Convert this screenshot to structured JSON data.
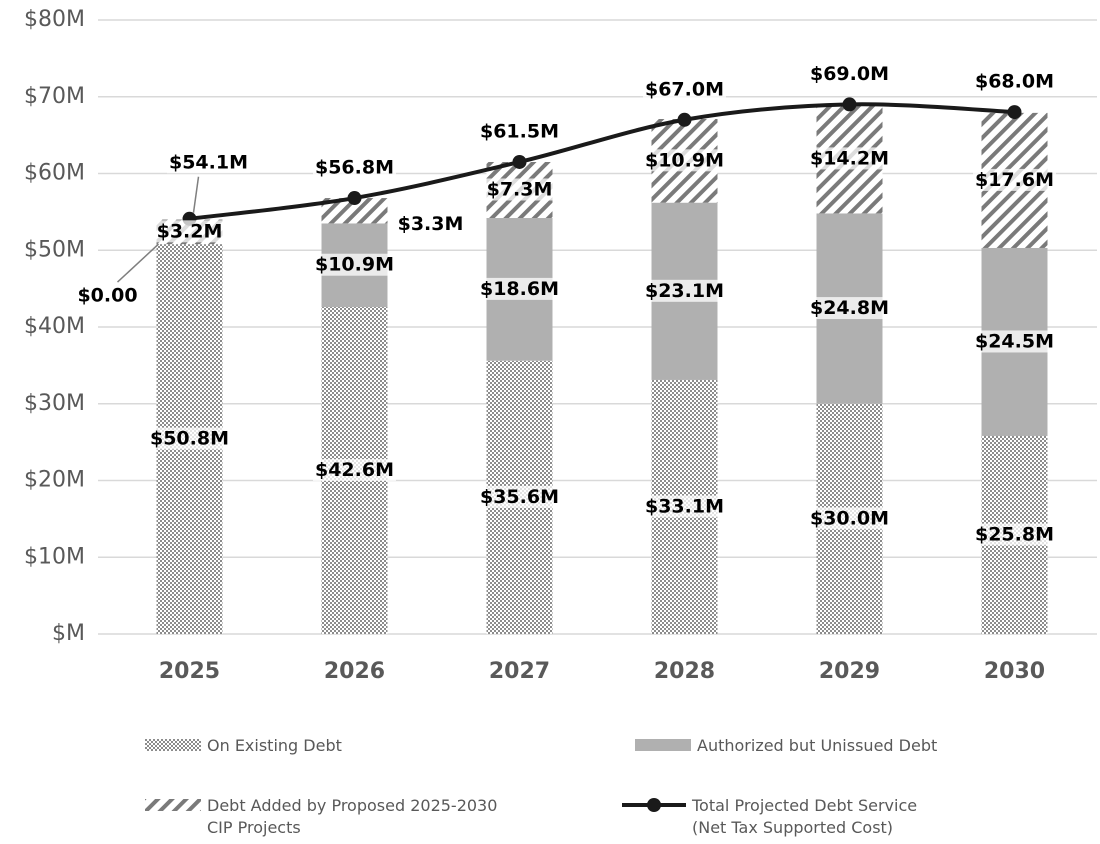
{
  "chart_data": {
    "type": "stacked_bar_line",
    "categories": [
      "2025",
      "2026",
      "2027",
      "2028",
      "2029",
      "2030"
    ],
    "series": [
      {
        "name": "On Existing Debt",
        "color": "#8c8c8c",
        "values": [
          50.8,
          42.6,
          35.6,
          33.1,
          30.0,
          25.8
        ],
        "value_labels": [
          "$50.8M",
          "$42.6M",
          "$35.6M",
          "$33.1M",
          "$30.0M",
          "$25.8M"
        ]
      },
      {
        "name": "Authorized but Unissued Debt",
        "color": "#b0b0b0",
        "values": [
          0,
          10.9,
          18.6,
          23.1,
          24.8,
          24.5
        ],
        "value_labels": [
          "$0.00",
          "$10.9M",
          "$18.6M",
          "$23.1M",
          "$24.8M",
          "$24.5M"
        ]
      },
      {
        "name": "Debt Added by Proposed 2025-2030 CIP Projects",
        "color": "#7a7a7a",
        "values": [
          3.2,
          3.3,
          7.3,
          10.9,
          14.2,
          17.6
        ],
        "value_labels": [
          "$3.2M",
          "$3.3M",
          "$7.3M",
          "$10.9M",
          "$14.2M",
          "$17.6M"
        ]
      },
      {
        "name": "Total Projected Debt Service (Net Tax Supported Cost)",
        "color": "#1a1a1a",
        "type": "line",
        "values": [
          54.1,
          56.8,
          61.5,
          67.0,
          69.0,
          68.0
        ],
        "value_labels": [
          "$54.1M",
          "$56.8M",
          "$61.5M",
          "$67.0M",
          "$69.0M",
          "$68.0M"
        ]
      }
    ],
    "ylim": [
      0,
      80
    ],
    "yticks": [
      {
        "value": 0,
        "label": "$M"
      },
      {
        "value": 10,
        "label": "$10M"
      },
      {
        "value": 20,
        "label": "$20M"
      },
      {
        "value": 30,
        "label": "$30M"
      },
      {
        "value": 40,
        "label": "$40M"
      },
      {
        "value": 50,
        "label": "$50M"
      },
      {
        "value": 60,
        "label": "$60M"
      },
      {
        "value": 70,
        "label": "$70M"
      },
      {
        "value": 80,
        "label": "$80M"
      }
    ],
    "grid": true
  }
}
